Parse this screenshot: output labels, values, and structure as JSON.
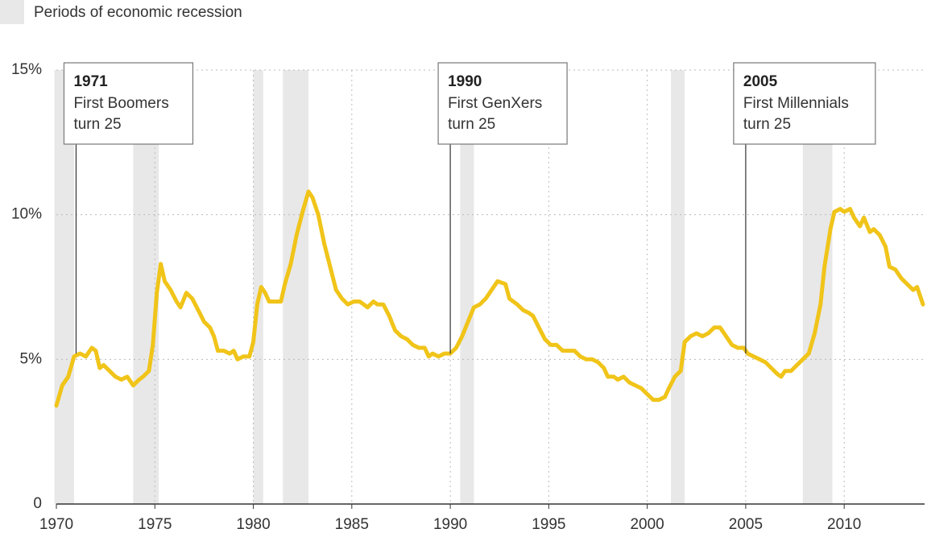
{
  "chart_data": {
    "type": "line",
    "legend_label": "Periods of economic recession",
    "recession_color": "#e8e8e8",
    "recessions": [
      [
        1969.9,
        1970.9
      ],
      [
        1973.9,
        1975.2
      ],
      [
        1980.0,
        1980.5
      ],
      [
        1981.5,
        1982.8
      ],
      [
        1990.5,
        1991.2
      ],
      [
        2001.2,
        2001.9
      ],
      [
        2007.9,
        2009.4
      ]
    ],
    "color": "#f0c419",
    "xlim": [
      1970,
      2014
    ],
    "xticks": [
      1970,
      1975,
      1980,
      1985,
      1990,
      1995,
      2000,
      2005,
      2010
    ],
    "ylim": [
      0,
      15
    ],
    "yticks": [
      0,
      {
        "value": 5,
        "label": "5%"
      },
      {
        "value": 10,
        "label": "10%"
      },
      {
        "value": 15,
        "label": "15%"
      }
    ],
    "grid": true,
    "annotations": [
      {
        "x": 1971,
        "lines": [
          "First Boomers",
          "turn 25"
        ]
      },
      {
        "x": 1990,
        "lines": [
          "First GenXers",
          "turn 25"
        ]
      },
      {
        "x": 2005,
        "lines": [
          "First Millennials",
          "turn 25"
        ]
      }
    ],
    "x": [
      1970.0,
      1970.3,
      1970.6,
      1970.9,
      1971.2,
      1971.5,
      1971.8,
      1972.0,
      1972.2,
      1972.4,
      1972.7,
      1973.0,
      1973.3,
      1973.6,
      1973.9,
      1974.2,
      1974.4,
      1974.7,
      1974.9,
      1975.1,
      1975.3,
      1975.5,
      1975.8,
      1976.1,
      1976.3,
      1976.6,
      1976.9,
      1977.2,
      1977.5,
      1977.8,
      1978.0,
      1978.2,
      1978.5,
      1978.8,
      1979.0,
      1979.2,
      1979.5,
      1979.8,
      1980.0,
      1980.2,
      1980.4,
      1980.6,
      1980.8,
      1981.1,
      1981.4,
      1981.6,
      1981.9,
      1982.2,
      1982.5,
      1982.8,
      1983.0,
      1983.3,
      1983.6,
      1983.9,
      1984.2,
      1984.5,
      1984.8,
      1985.1,
      1985.4,
      1985.8,
      1986.1,
      1986.3,
      1986.6,
      1986.9,
      1987.2,
      1987.5,
      1987.8,
      1988.1,
      1988.4,
      1988.7,
      1988.9,
      1989.1,
      1989.4,
      1989.7,
      1990.0,
      1990.3,
      1990.6,
      1990.9,
      1991.2,
      1991.5,
      1991.8,
      1992.1,
      1992.4,
      1992.8,
      1993.0,
      1993.4,
      1993.7,
      1994.0,
      1994.2,
      1994.5,
      1994.8,
      1995.1,
      1995.4,
      1995.7,
      1996.0,
      1996.3,
      1996.6,
      1996.9,
      1997.2,
      1997.5,
      1997.8,
      1998.0,
      1998.3,
      1998.5,
      1998.8,
      1999.1,
      1999.4,
      1999.7,
      2000.0,
      2000.3,
      2000.6,
      2000.9,
      2001.1,
      2001.4,
      2001.7,
      2001.9,
      2002.2,
      2002.5,
      2002.8,
      2003.1,
      2003.4,
      2003.7,
      2004.0,
      2004.3,
      2004.6,
      2004.9,
      2005.1,
      2005.4,
      2005.7,
      2006.0,
      2006.3,
      2006.6,
      2006.8,
      2007.0,
      2007.3,
      2007.6,
      2007.9,
      2008.2,
      2008.5,
      2008.8,
      2009.0,
      2009.3,
      2009.5,
      2009.8,
      2010.0,
      2010.3,
      2010.5,
      2010.8,
      2011.0,
      2011.3,
      2011.5,
      2011.8,
      2012.1,
      2012.3,
      2012.6,
      2012.9,
      2013.2,
      2013.5,
      2013.7,
      2014.0
    ],
    "values": [
      3.4,
      4.1,
      4.4,
      5.1,
      5.2,
      5.1,
      5.4,
      5.3,
      4.7,
      4.8,
      4.6,
      4.4,
      4.3,
      4.4,
      4.1,
      4.3,
      4.4,
      4.6,
      5.5,
      7.3,
      8.3,
      7.7,
      7.4,
      7.0,
      6.8,
      7.3,
      7.1,
      6.7,
      6.3,
      6.1,
      5.8,
      5.3,
      5.3,
      5.2,
      5.3,
      5.0,
      5.1,
      5.1,
      5.6,
      6.9,
      7.5,
      7.3,
      7.0,
      7.0,
      7.0,
      7.6,
      8.3,
      9.3,
      10.1,
      10.8,
      10.6,
      10.0,
      9.0,
      8.2,
      7.4,
      7.1,
      6.9,
      7.0,
      7.0,
      6.8,
      7.0,
      6.9,
      6.9,
      6.5,
      6.0,
      5.8,
      5.7,
      5.5,
      5.4,
      5.4,
      5.1,
      5.2,
      5.1,
      5.2,
      5.2,
      5.4,
      5.8,
      6.3,
      6.8,
      6.9,
      7.1,
      7.4,
      7.7,
      7.6,
      7.1,
      6.9,
      6.7,
      6.6,
      6.5,
      6.1,
      5.7,
      5.5,
      5.5,
      5.3,
      5.3,
      5.3,
      5.1,
      5.0,
      5.0,
      4.9,
      4.7,
      4.4,
      4.4,
      4.3,
      4.4,
      4.2,
      4.1,
      4.0,
      3.8,
      3.6,
      3.6,
      3.7,
      4.0,
      4.4,
      4.6,
      5.6,
      5.8,
      5.9,
      5.8,
      5.9,
      6.1,
      6.1,
      5.8,
      5.5,
      5.4,
      5.4,
      5.2,
      5.1,
      5.0,
      4.9,
      4.7,
      4.5,
      4.4,
      4.6,
      4.6,
      4.8,
      5.0,
      5.2,
      5.9,
      6.9,
      8.2,
      9.5,
      10.1,
      10.2,
      10.1,
      10.2,
      9.9,
      9.6,
      9.9,
      9.4,
      9.5,
      9.3,
      8.9,
      8.2,
      8.1,
      7.8,
      7.6,
      7.4,
      7.5,
      6.9
    ]
  }
}
